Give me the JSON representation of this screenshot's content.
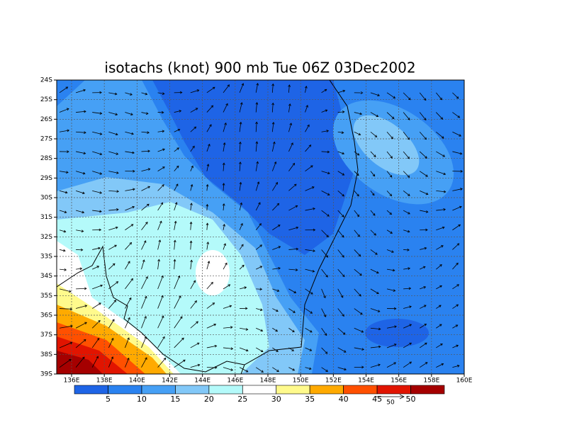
{
  "title": "isotachs (knot) 900 mb Tue 06Z 03Dec2002",
  "map": {
    "lon_labels": [
      "136E",
      "138E",
      "140E",
      "142E",
      "144E",
      "146E",
      "148E",
      "150E",
      "152E",
      "154E",
      "156E",
      "158E",
      "160E"
    ],
    "lat_labels": [
      "24S",
      "25S",
      "26S",
      "27S",
      "28S",
      "29S",
      "30S",
      "31S",
      "32S",
      "33S",
      "34S",
      "35S",
      "36S",
      "37S",
      "38S",
      "39S"
    ]
  },
  "colorbar": {
    "levels": [
      5,
      10,
      15,
      20,
      25,
      30,
      35,
      40,
      45,
      50
    ],
    "colors": [
      "#1e64e6",
      "#2a82f0",
      "#46a0f5",
      "#82c8f8",
      "#b4fafa",
      "#ffffff",
      "#fffa8c",
      "#ffaa00",
      "#ff5000",
      "#e11400",
      "#a50000"
    ]
  },
  "vector_reference": {
    "label": 50
  }
}
